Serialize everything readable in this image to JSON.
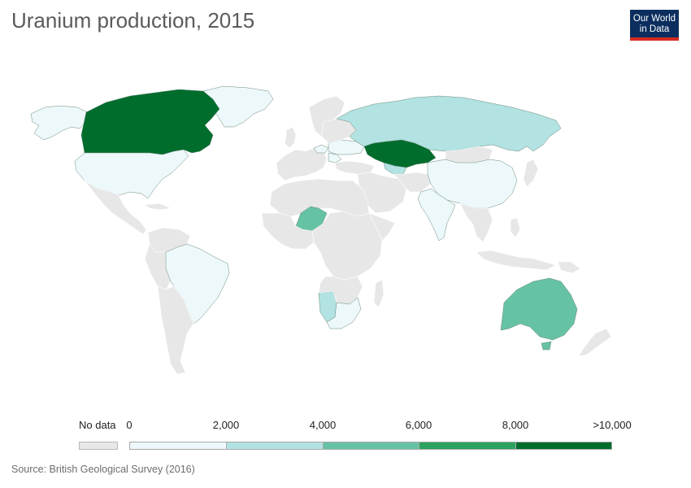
{
  "title": "Uranium production, 2015",
  "logo": {
    "line1": "Our World",
    "line2": "in Data"
  },
  "legend": {
    "no_data_label": "No data",
    "no_data_color": "#e7e7e7",
    "ticks": [
      "0",
      "2,000",
      "4,000",
      "6,000",
      "8,000",
      ">10,000"
    ],
    "bins": [
      {
        "range": "0–2,000",
        "color": "#edf8fb"
      },
      {
        "range": "2,000–4,000",
        "color": "#b2e2e2"
      },
      {
        "range": "4,000–6,000",
        "color": "#66c2a4"
      },
      {
        "range": "6,000–8,000",
        "color": "#2ca25f"
      },
      {
        "range": "8,000–10,000+",
        "color": "#006d2c"
      }
    ]
  },
  "countries": [
    {
      "name": "Canada",
      "bin": 4
    },
    {
      "name": "Kazakhstan",
      "bin": 4
    },
    {
      "name": "Australia",
      "bin": 2
    },
    {
      "name": "Niger",
      "bin": 2
    },
    {
      "name": "Namibia",
      "bin": 1
    },
    {
      "name": "Russia",
      "bin": 1
    },
    {
      "name": "Uzbekistan",
      "bin": 1
    },
    {
      "name": "Greenland",
      "bin": 0
    },
    {
      "name": "United States",
      "bin": 0
    },
    {
      "name": "Brazil",
      "bin": 0
    },
    {
      "name": "China",
      "bin": 0
    },
    {
      "name": "India",
      "bin": 0
    },
    {
      "name": "Ukraine",
      "bin": 0
    },
    {
      "name": "South Africa",
      "bin": 0
    },
    {
      "name": "Czech Republic",
      "bin": 0
    },
    {
      "name": "Romania",
      "bin": 0
    }
  ],
  "source": "Source: British Geological Survey (2016)"
}
